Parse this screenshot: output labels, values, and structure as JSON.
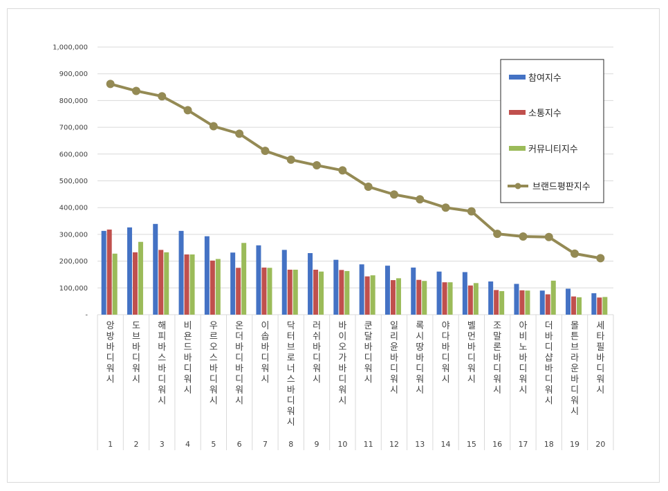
{
  "chart_data": {
    "type": "bar",
    "title": "",
    "xlabel": "",
    "ylabel": "",
    "ylim": [
      0,
      1000000
    ],
    "yticks": [
      0,
      100000,
      200000,
      300000,
      400000,
      500000,
      600000,
      700000,
      800000,
      900000,
      1000000
    ],
    "ytick_labels": [
      "-",
      "100,000",
      "200,000",
      "300,000",
      "400,000",
      "500,000",
      "600,000",
      "700,000",
      "800,000",
      "900,000",
      "1,000,000"
    ],
    "grid": true,
    "legend_position": "right",
    "ranks": [
      "1",
      "2",
      "3",
      "4",
      "5",
      "6",
      "7",
      "8",
      "9",
      "10",
      "11",
      "12",
      "13",
      "14",
      "15",
      "16",
      "17",
      "18",
      "19",
      "20"
    ],
    "categories": [
      "앙방바디워시",
      "도브바디워시",
      "해피바스바디워시",
      "비욘드바디워시",
      "우르오스바디워시",
      "온더바디바디워시",
      "이솝바디워시",
      "닥터브로너스바디워시",
      "러쉬바디워시",
      "바이오가바디워시",
      "쿤달바디워시",
      "일리윤바디워시",
      "록시땅바디워시",
      "야다바디워시",
      "벨먼바디워시",
      "조말론바디워시",
      "아비노바디워시",
      "더바디샵바디워시",
      "몰튼브라운바디워시",
      "세타필바디워시"
    ],
    "series": [
      {
        "name": "참여지수",
        "kind": "bar",
        "color": "#4472c4",
        "values": [
          313000,
          326000,
          339000,
          313000,
          293000,
          232000,
          259000,
          242000,
          230000,
          205000,
          188000,
          183000,
          176000,
          161000,
          159000,
          124000,
          115000,
          90000,
          97000,
          80000
        ]
      },
      {
        "name": "소통지수",
        "kind": "bar",
        "color": "#c0504d",
        "values": [
          318000,
          233000,
          242000,
          225000,
          202000,
          175000,
          176000,
          168000,
          168000,
          167000,
          143000,
          129000,
          130000,
          121000,
          109000,
          92000,
          91000,
          76000,
          68000,
          64000
        ]
      },
      {
        "name": "커뮤니티지수",
        "kind": "bar",
        "color": "#9bbb59",
        "values": [
          228000,
          272000,
          233000,
          225000,
          208000,
          268000,
          175000,
          168000,
          161000,
          163000,
          147000,
          136000,
          126000,
          121000,
          118000,
          88000,
          90000,
          127000,
          65000,
          66000
        ]
      },
      {
        "name": "브랜드평판지수",
        "kind": "line",
        "color": "#948a54",
        "values": [
          862000,
          836000,
          816000,
          764000,
          704000,
          676000,
          612000,
          579000,
          558000,
          539000,
          478000,
          449000,
          431000,
          400000,
          386000,
          302000,
          292000,
          290000,
          228000,
          211000
        ]
      }
    ]
  }
}
